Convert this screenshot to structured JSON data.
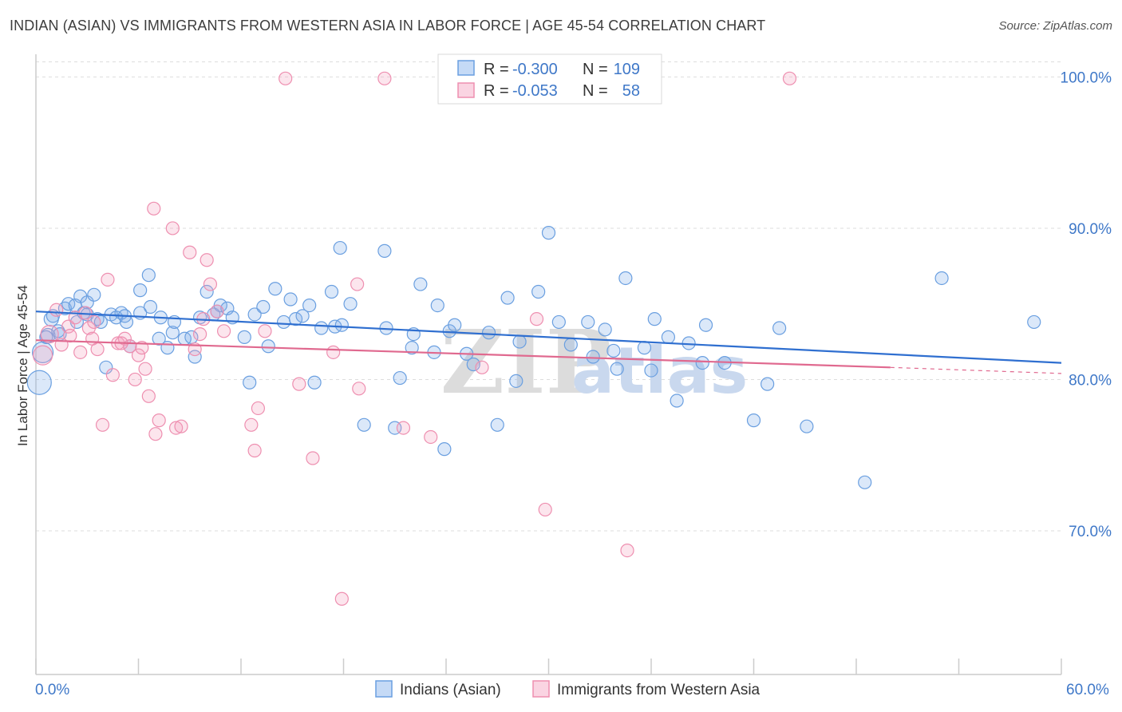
{
  "header": {
    "title": "INDIAN (ASIAN) VS IMMIGRANTS FROM WESTERN ASIA IN LABOR FORCE | AGE 45-54 CORRELATION CHART",
    "source": "Source: ZipAtlas.com"
  },
  "watermark": {
    "zip": "ZIP",
    "atlas": "atlas"
  },
  "colors": {
    "blue": "#6a9fe0",
    "blue_fill": "rgba(126,174,235,0.28)",
    "blue_line": "#2f6fd0",
    "pink": "#ee8fb0",
    "pink_fill": "rgba(244,160,190,0.28)",
    "pink_line": "#e0698f",
    "axis_text": "#3f78c8",
    "grid": "#dddddd"
  },
  "legend": {
    "rows": [
      {
        "r_label": "R =",
        "r_value": "-0.300",
        "n_label": "N =",
        "n_value": "109"
      },
      {
        "r_label": "R =",
        "r_value": "-0.053",
        "n_label": "N =",
        "n_value": "58"
      }
    ]
  },
  "chart_data": {
    "type": "scatter",
    "title": "INDIAN (ASIAN) VS IMMIGRANTS FROM WESTERN ASIA IN LABOR FORCE | AGE 45-54 CORRELATION CHART",
    "xlabel": "",
    "ylabel": "In Labor Force | Age 45-54",
    "xlim": [
      0,
      60
    ],
    "ylim": [
      60.5,
      101.5
    ],
    "x_tick_labels": [
      "0.0%",
      "60.0%"
    ],
    "y_ticks": [
      70,
      80,
      90,
      100
    ],
    "y_tick_labels": [
      "70.0%",
      "80.0%",
      "90.0%",
      "100.0%"
    ],
    "series": [
      {
        "name": "Indians (Asian)",
        "color": "blue",
        "trend": {
          "x": [
            0,
            60
          ],
          "y": [
            84.5,
            81.1
          ]
        },
        "points": [
          [
            0.2,
            79.8,
            15
          ],
          [
            0.4,
            81.8,
            13
          ],
          [
            0.7,
            82.9,
            9
          ],
          [
            0.9,
            84.0,
            9
          ],
          [
            1.0,
            84.2,
            8
          ],
          [
            1.3,
            83.2,
            8
          ],
          [
            1.7,
            84.7,
            8
          ],
          [
            1.9,
            85.0,
            8
          ],
          [
            2.3,
            84.9,
            8
          ],
          [
            2.4,
            83.8,
            8
          ],
          [
            2.6,
            85.5,
            8
          ],
          [
            2.8,
            84.4,
            8
          ],
          [
            3.0,
            85.1,
            8
          ],
          [
            3.0,
            84.3,
            8
          ],
          [
            3.4,
            85.6,
            8
          ],
          [
            3.6,
            84.0,
            8
          ],
          [
            3.8,
            83.8,
            8
          ],
          [
            4.1,
            80.8,
            8
          ],
          [
            4.4,
            84.3,
            8
          ],
          [
            4.7,
            84.1,
            8
          ],
          [
            5.0,
            84.4,
            8
          ],
          [
            5.3,
            83.8,
            8
          ],
          [
            5.5,
            82.2,
            8
          ],
          [
            6.1,
            84.4,
            8
          ],
          [
            6.1,
            85.9,
            8
          ],
          [
            6.6,
            86.9,
            8
          ],
          [
            6.7,
            84.8,
            8
          ],
          [
            7.2,
            82.7,
            8
          ],
          [
            7.3,
            84.1,
            8
          ],
          [
            7.7,
            82.1,
            8
          ],
          [
            8.0,
            83.1,
            8
          ],
          [
            8.1,
            83.8,
            8
          ],
          [
            8.7,
            82.7,
            8
          ],
          [
            9.1,
            82.8,
            8
          ],
          [
            9.3,
            81.5,
            8
          ],
          [
            9.6,
            84.1,
            8
          ],
          [
            10.0,
            85.8,
            8
          ],
          [
            10.4,
            84.3,
            8
          ],
          [
            10.6,
            84.5,
            8
          ],
          [
            10.8,
            84.9,
            8
          ],
          [
            11.2,
            84.7,
            8
          ],
          [
            11.5,
            84.1,
            8
          ],
          [
            12.2,
            82.8,
            8
          ],
          [
            12.5,
            79.8,
            8
          ],
          [
            12.8,
            84.3,
            8
          ],
          [
            13.3,
            84.8,
            8
          ],
          [
            13.6,
            82.2,
            8
          ],
          [
            14.0,
            86.0,
            8
          ],
          [
            14.5,
            83.8,
            8
          ],
          [
            14.9,
            85.3,
            8
          ],
          [
            15.2,
            84.0,
            8
          ],
          [
            15.6,
            84.2,
            8
          ],
          [
            16.0,
            84.9,
            8
          ],
          [
            16.3,
            79.8,
            8
          ],
          [
            16.7,
            83.4,
            8
          ],
          [
            17.3,
            85.8,
            8
          ],
          [
            17.5,
            83.5,
            8
          ],
          [
            17.9,
            83.6,
            8
          ],
          [
            17.8,
            88.7,
            8
          ],
          [
            18.4,
            85.0,
            8
          ],
          [
            19.2,
            77.0,
            8
          ],
          [
            20.4,
            88.5,
            8
          ],
          [
            20.5,
            83.4,
            8
          ],
          [
            21.0,
            76.8,
            8
          ],
          [
            21.3,
            80.1,
            8
          ],
          [
            22.0,
            82.1,
            8
          ],
          [
            22.1,
            83.0,
            8
          ],
          [
            22.5,
            86.3,
            8
          ],
          [
            23.3,
            81.8,
            8
          ],
          [
            23.5,
            84.9,
            8
          ],
          [
            23.9,
            75.4,
            8
          ],
          [
            24.2,
            83.2,
            8
          ],
          [
            24.5,
            83.6,
            8
          ],
          [
            25.2,
            81.7,
            8
          ],
          [
            25.6,
            81.0,
            8
          ],
          [
            26.5,
            83.1,
            8
          ],
          [
            27.0,
            77.0,
            8
          ],
          [
            27.6,
            85.4,
            8
          ],
          [
            28.1,
            79.9,
            8
          ],
          [
            28.3,
            82.5,
            8
          ],
          [
            29.4,
            85.8,
            8
          ],
          [
            30.0,
            89.7,
            8
          ],
          [
            30.6,
            83.8,
            8
          ],
          [
            31.3,
            82.3,
            8
          ],
          [
            32.3,
            83.8,
            8
          ],
          [
            32.6,
            81.5,
            8
          ],
          [
            33.3,
            83.3,
            8
          ],
          [
            33.8,
            81.9,
            8
          ],
          [
            34.0,
            80.7,
            8
          ],
          [
            34.5,
            86.7,
            8
          ],
          [
            35.6,
            82.1,
            8
          ],
          [
            36.0,
            80.6,
            8
          ],
          [
            36.2,
            84.0,
            8
          ],
          [
            37.0,
            82.8,
            8
          ],
          [
            37.5,
            78.6,
            8
          ],
          [
            38.2,
            82.4,
            8
          ],
          [
            39.0,
            81.1,
            8
          ],
          [
            39.2,
            83.6,
            8
          ],
          [
            40.3,
            81.1,
            8
          ],
          [
            42.0,
            77.3,
            8
          ],
          [
            42.8,
            79.7,
            8
          ],
          [
            43.5,
            83.4,
            8
          ],
          [
            45.1,
            76.9,
            8
          ],
          [
            48.5,
            73.2,
            8
          ],
          [
            53.0,
            86.7,
            8
          ],
          [
            58.4,
            83.8,
            8
          ],
          [
            0.6,
            82.8,
            8
          ],
          [
            1.4,
            83.0,
            8
          ],
          [
            5.2,
            84.2,
            8
          ]
        ]
      },
      {
        "name": "Immigrants from Western Asia",
        "color": "pink",
        "trend": {
          "x": [
            0,
            50
          ],
          "y": [
            82.6,
            80.8
          ]
        },
        "trend_dashed": {
          "x": [
            50,
            60
          ],
          "y": [
            80.8,
            80.4
          ]
        },
        "points": [
          [
            0.4,
            81.6,
            12
          ],
          [
            0.8,
            83.0,
            11
          ],
          [
            1.2,
            84.6,
            8
          ],
          [
            1.5,
            82.3,
            8
          ],
          [
            1.9,
            83.5,
            8
          ],
          [
            2.3,
            84.1,
            8
          ],
          [
            2.6,
            81.8,
            8
          ],
          [
            2.9,
            84.4,
            8
          ],
          [
            3.1,
            83.4,
            8
          ],
          [
            3.4,
            83.8,
            8
          ],
          [
            3.6,
            82.0,
            8
          ],
          [
            3.9,
            77.0,
            8
          ],
          [
            4.2,
            86.6,
            8
          ],
          [
            4.5,
            80.3,
            8
          ],
          [
            4.8,
            82.4,
            8
          ],
          [
            5.2,
            82.7,
            8
          ],
          [
            5.5,
            82.2,
            8
          ],
          [
            5.8,
            80.0,
            8
          ],
          [
            6.0,
            81.6,
            8
          ],
          [
            6.2,
            82.1,
            8
          ],
          [
            6.4,
            80.7,
            8
          ],
          [
            6.6,
            78.9,
            8
          ],
          [
            6.9,
            91.3,
            8
          ],
          [
            7.0,
            76.4,
            8
          ],
          [
            7.2,
            77.3,
            8
          ],
          [
            8.0,
            90.0,
            8
          ],
          [
            8.2,
            76.8,
            8
          ],
          [
            8.5,
            76.9,
            8
          ],
          [
            9.0,
            88.4,
            8
          ],
          [
            9.3,
            82.0,
            8
          ],
          [
            9.6,
            83.0,
            8
          ],
          [
            10.0,
            87.9,
            8
          ],
          [
            10.2,
            86.3,
            8
          ],
          [
            10.6,
            84.5,
            8
          ],
          [
            12.6,
            77.0,
            8
          ],
          [
            12.8,
            75.3,
            8
          ],
          [
            13.0,
            78.1,
            8
          ],
          [
            13.4,
            83.2,
            8
          ],
          [
            14.6,
            99.9,
            8
          ],
          [
            15.4,
            79.7,
            8
          ],
          [
            16.2,
            74.8,
            8
          ],
          [
            17.4,
            81.8,
            8
          ],
          [
            17.9,
            65.5,
            8
          ],
          [
            18.8,
            86.3,
            8
          ],
          [
            18.9,
            79.4,
            8
          ],
          [
            20.4,
            99.9,
            8
          ],
          [
            21.5,
            76.8,
            8
          ],
          [
            23.1,
            76.2,
            8
          ],
          [
            26.1,
            80.8,
            8
          ],
          [
            29.3,
            84.0,
            8
          ],
          [
            29.8,
            71.4,
            8
          ],
          [
            34.6,
            68.7,
            8
          ],
          [
            44.1,
            99.9,
            8
          ],
          [
            2.0,
            82.9,
            8
          ],
          [
            3.3,
            82.7,
            8
          ],
          [
            5.0,
            82.4,
            8
          ],
          [
            9.8,
            84.0,
            8
          ],
          [
            11.0,
            83.2,
            8
          ]
        ]
      }
    ]
  },
  "bottom_legend": {
    "items": [
      {
        "label": "Indians (Asian)"
      },
      {
        "label": "Immigrants from Western Asia"
      }
    ]
  }
}
